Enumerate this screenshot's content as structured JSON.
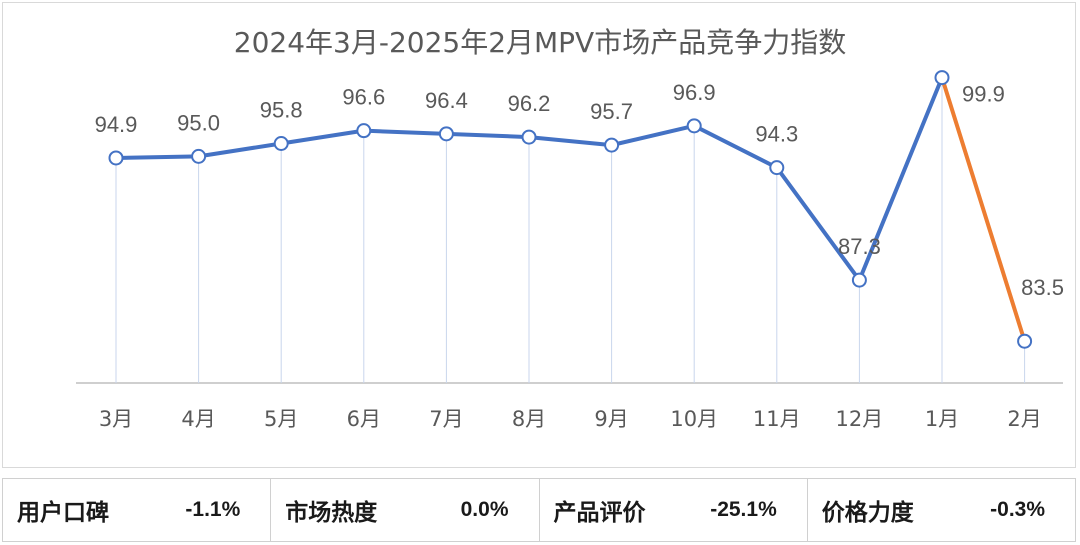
{
  "chart_data": {
    "type": "line",
    "title": "2024年3月-2025年2月MPV市场产品竞争力指数",
    "categories": [
      "3月",
      "4月",
      "5月",
      "6月",
      "7月",
      "8月",
      "9月",
      "10月",
      "11月",
      "12月",
      "1月",
      "2月"
    ],
    "values": [
      94.9,
      95.0,
      95.8,
      96.6,
      96.4,
      96.2,
      95.7,
      96.9,
      94.3,
      87.3,
      99.9,
      83.5
    ],
    "data_labels": [
      "94.9",
      "95.0",
      "95.8",
      "96.6",
      "96.4",
      "96.2",
      "95.7",
      "96.9",
      "94.3",
      "87.3",
      "99.9",
      "83.5"
    ],
    "ylim": [
      80.9,
      100
    ],
    "xlabel": "",
    "ylabel": "",
    "grid": false,
    "colors": {
      "main_line": "#4472c4",
      "highlight_line": "#ed7d31",
      "drop_lines": "#c9d6ec",
      "axis": "#bfbfbf",
      "label": "#595959"
    },
    "highlight_segment": [
      10,
      11
    ]
  },
  "metrics": [
    {
      "label": "用户口碑",
      "value": "-1.1%"
    },
    {
      "label": "市场热度",
      "value": "0.0%"
    },
    {
      "label": "产品评价",
      "value": "-25.1%"
    },
    {
      "label": "价格力度",
      "value": "-0.3%"
    }
  ]
}
